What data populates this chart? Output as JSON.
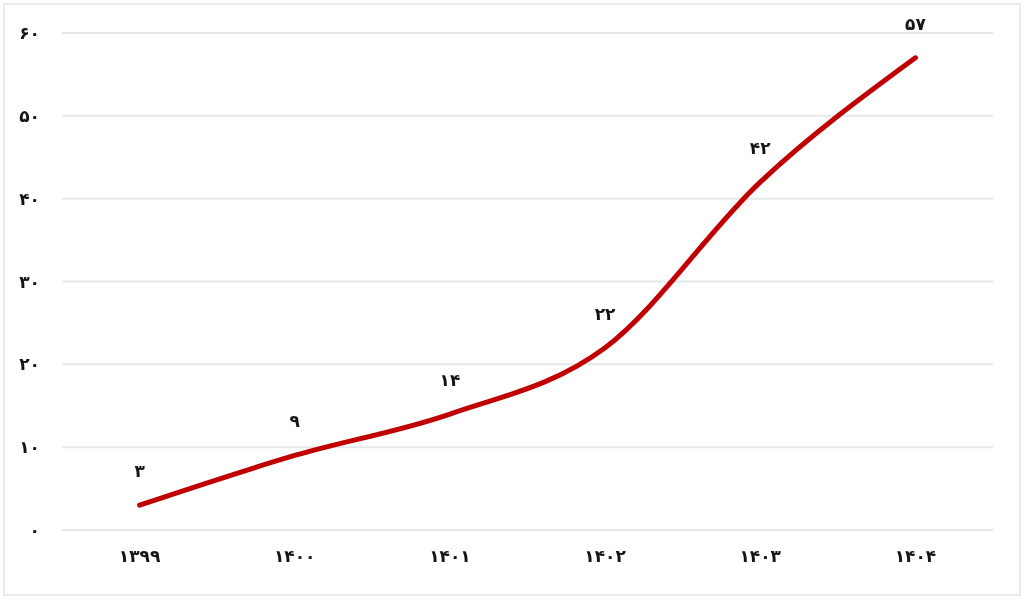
{
  "chart_data": {
    "type": "line",
    "categories": [
      "۱۳۹۹",
      "۱۴۰۰",
      "۱۴۰۱",
      "۱۴۰۲",
      "۱۴۰۳",
      "۱۴۰۴"
    ],
    "values": [
      3,
      9,
      14,
      22,
      42,
      57
    ],
    "color": "#c00000",
    "value_labels": [
      "۳",
      "۹",
      "۱۴",
      "۲۲",
      "۴۲",
      "۵۷"
    ],
    "ylim": [
      0,
      60
    ],
    "yticks": [
      {
        "value": 0,
        "label": "۰"
      },
      {
        "value": 10,
        "label": "۱۰"
      },
      {
        "value": 20,
        "label": "۲۰"
      },
      {
        "value": 30,
        "label": "۳۰"
      },
      {
        "value": 40,
        "label": "۴۰"
      },
      {
        "value": 50,
        "label": "۵۰"
      },
      {
        "value": 60,
        "label": "۶۰"
      }
    ],
    "grid": "y",
    "marker": "none",
    "line_style": "solid"
  }
}
